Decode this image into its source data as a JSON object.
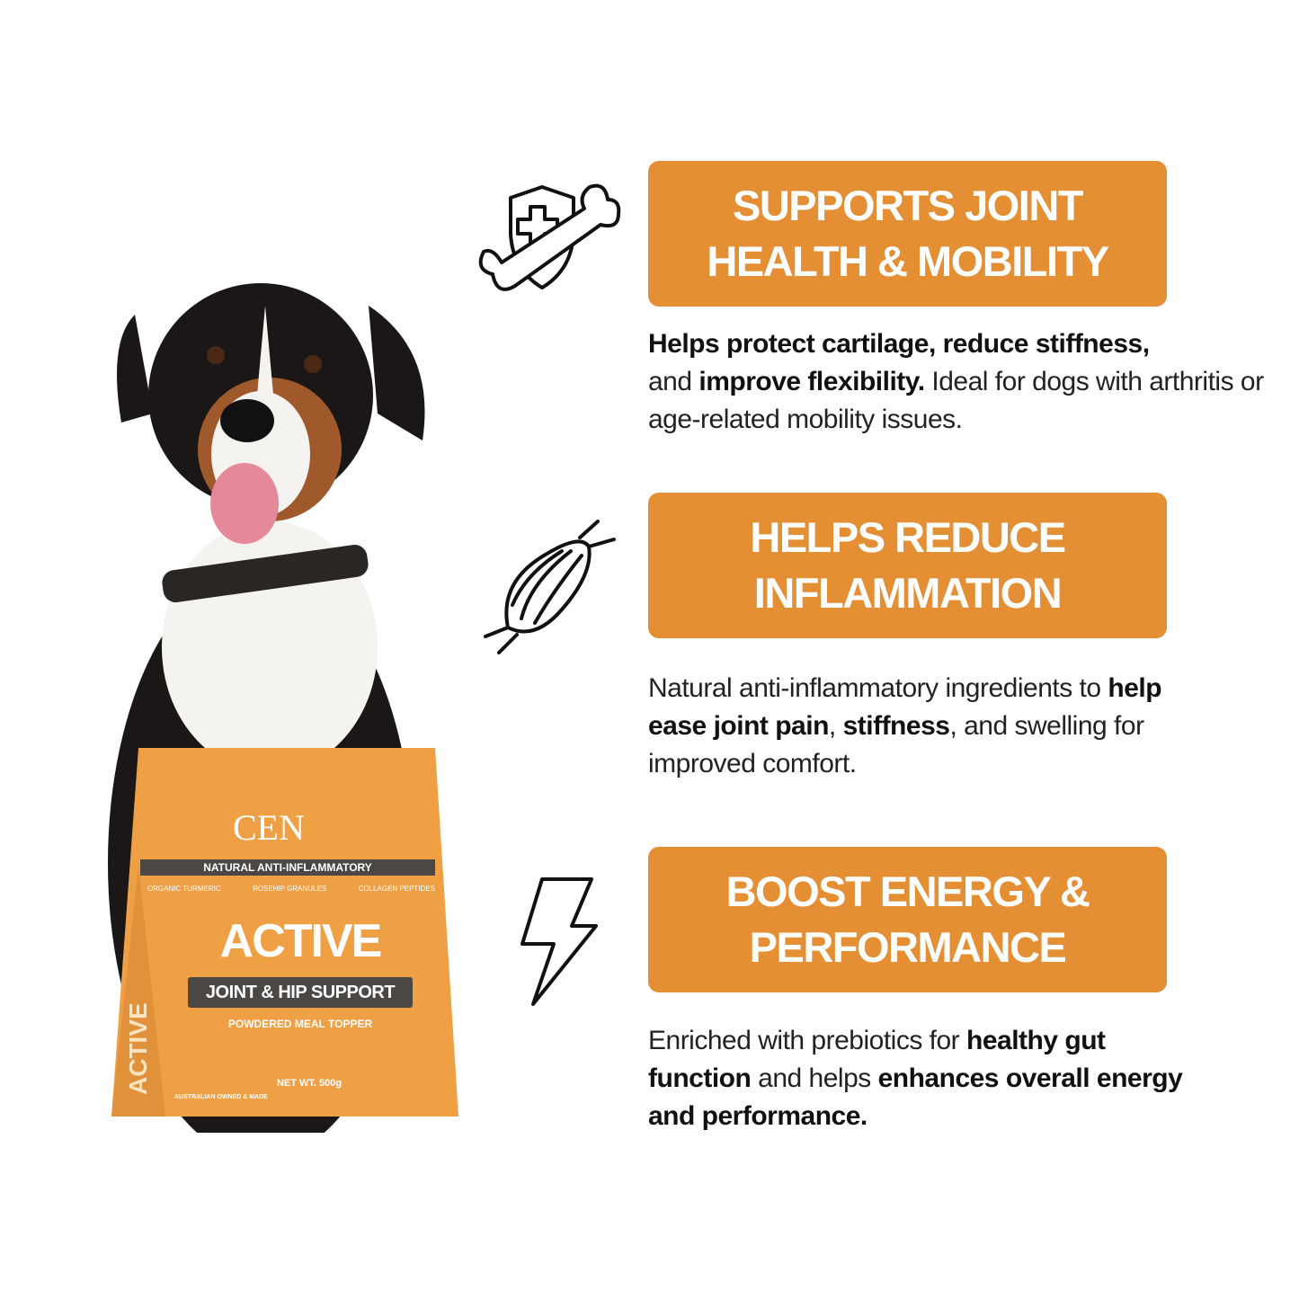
{
  "colors": {
    "accent": "#E58F34",
    "bag_band": "#4a4744"
  },
  "features": [
    {
      "icon": "shield-bone-icon",
      "heading_line1": "SUPPORTS JOINT",
      "heading_line2": "HEALTH & MOBILITY",
      "p": [
        "Helps protect cartilage, reduce stiffness,",
        " and ",
        "improve flexibility.",
        " Ideal for dogs with arthritis or age-related mobility issues."
      ]
    },
    {
      "icon": "muscle-icon",
      "heading_line1": "HELPS REDUCE",
      "heading_line2": "INFLAMMATION",
      "p": [
        "Natural anti-inflammatory ingredients to ",
        "help ease joint pain",
        ", ",
        "stiffness",
        ", and swelling for improved comfort."
      ]
    },
    {
      "icon": "lightning-icon",
      "heading_line1": "BOOST ENERGY &",
      "heading_line2": "PERFORMANCE",
      "p": [
        "Enriched with prebiotics for ",
        "healthy gut function",
        " and helps ",
        "enhances overall energy and performance."
      ]
    }
  ],
  "product": {
    "brand": "CEN",
    "band": "NATURAL ANTI-INFLAMMATORY",
    "ingredients": [
      "ORGANIC TURMERIC",
      "ROSEHIP GRANULES",
      "COLLAGEN PEPTIDES"
    ],
    "name": "ACTIVE",
    "subtitle": "JOINT & HIP SUPPORT",
    "type": "POWDERED MEAL TOPPER",
    "badge": "AUSTRALIAN OWNED & MADE",
    "weight": "NET WT. 500g",
    "side": "ACTIVE"
  }
}
